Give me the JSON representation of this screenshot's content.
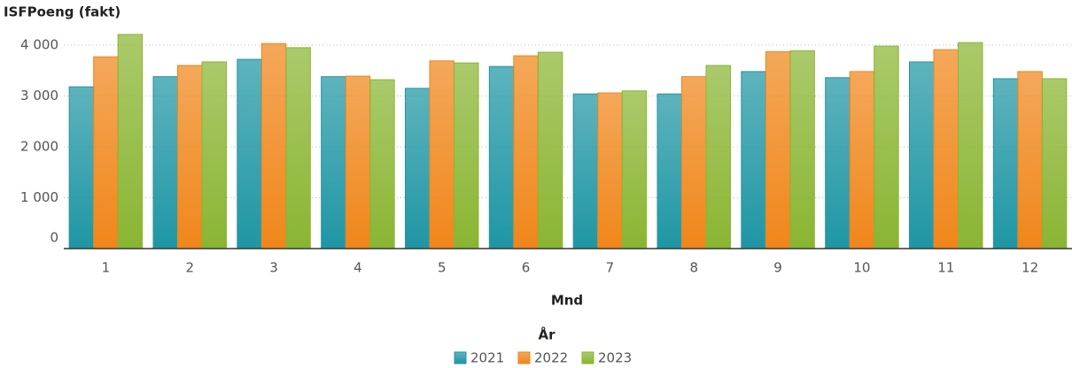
{
  "chart_data": {
    "type": "bar",
    "y_label": "ISFPoeng (fakt)",
    "x_label": "Mnd",
    "legend_title": "År",
    "categories": [
      "1",
      "2",
      "3",
      "4",
      "5",
      "6",
      "7",
      "8",
      "9",
      "10",
      "11",
      "12"
    ],
    "series": [
      {
        "name": "2021",
        "color": "#1f96a4",
        "values": [
          3180,
          3380,
          3720,
          3380,
          3150,
          3580,
          3040,
          3040,
          3480,
          3360,
          3670,
          3340
        ]
      },
      {
        "name": "2022",
        "color": "#f0861a",
        "values": [
          3770,
          3600,
          4030,
          3390,
          3690,
          3790,
          3060,
          3380,
          3870,
          3480,
          3910,
          3480
        ]
      },
      {
        "name": "2023",
        "color": "#8ab532",
        "values": [
          4210,
          3670,
          3950,
          3320,
          3650,
          3860,
          3100,
          3600,
          3890,
          3980,
          4050,
          3340
        ]
      }
    ],
    "ylim": [
      0,
      4400
    ],
    "yticks": [
      0,
      {
        "value": 1000,
        "label": "1 000"
      },
      {
        "value": 2000,
        "label": "2 000"
      },
      {
        "value": 3000,
        "label": "3 000"
      },
      {
        "value": 4000,
        "label": "4 000"
      }
    ],
    "grid": true
  }
}
